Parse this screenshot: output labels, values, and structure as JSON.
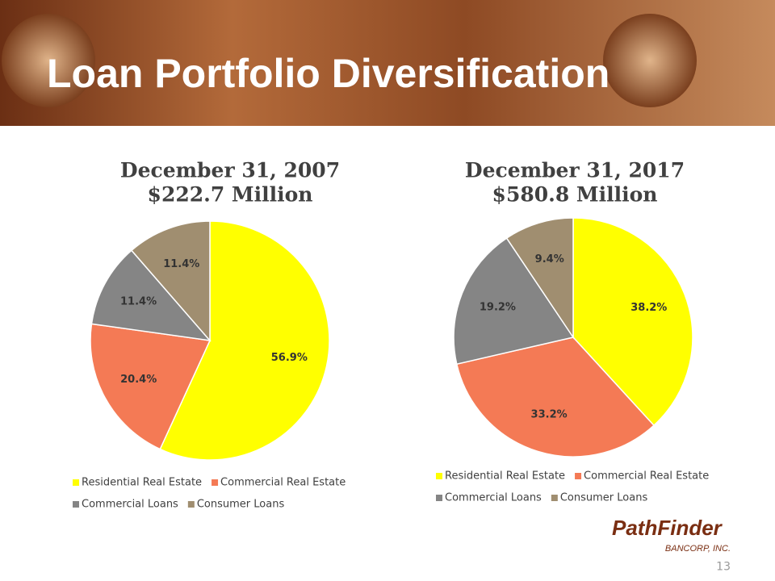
{
  "slide": {
    "title": "Loan Portfolio Diversification",
    "page_number": "13",
    "logo": {
      "name": "PathFinder",
      "sub": "BANCORP, INC."
    }
  },
  "chart_data": [
    {
      "type": "pie",
      "title": "December 31, 2007",
      "subtitle": "$222.7 Million",
      "categories": [
        "Residential Real Estate",
        "Commercial Real Estate",
        "Commercial Loans",
        "Consumer Loans"
      ],
      "values": [
        56.9,
        20.4,
        11.4,
        11.4
      ],
      "value_labels": [
        "56.9%",
        "20.4%",
        "11.4%",
        "11.4%"
      ],
      "colors": [
        "#ffff00",
        "#f47a55",
        "#858585",
        "#a08e70"
      ]
    },
    {
      "type": "pie",
      "title": "December 31, 2017",
      "subtitle": "$580.8 Million",
      "categories": [
        "Residential Real Estate",
        "Commercial Real Estate",
        "Commercial Loans",
        "Consumer Loans"
      ],
      "values": [
        38.2,
        33.2,
        19.2,
        9.4
      ],
      "value_labels": [
        "38.2%",
        "33.2%",
        "19.2%",
        "9.4%"
      ],
      "colors": [
        "#ffff00",
        "#f47a55",
        "#858585",
        "#a08e70"
      ]
    }
  ]
}
